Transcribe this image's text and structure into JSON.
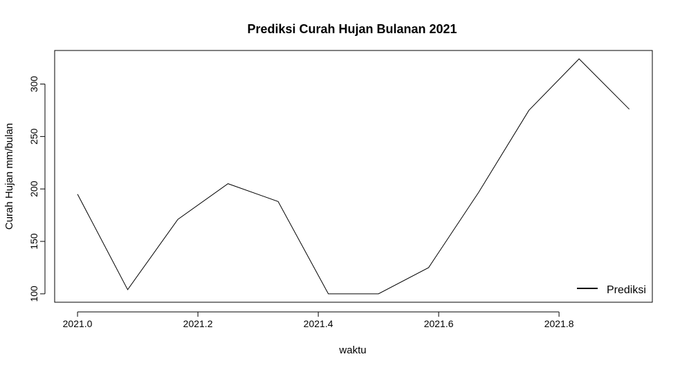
{
  "chart_data": {
    "type": "line",
    "title": "Prediksi Curah Hujan Bulanan 2021",
    "xlabel": "waktu",
    "ylabel": "Curah Hujan mm/bulan",
    "x_ticks": [
      "2021.0",
      "2021.2",
      "2021.4",
      "2021.6",
      "2021.8"
    ],
    "y_ticks": [
      "100",
      "150",
      "200",
      "250",
      "300"
    ],
    "xlim": [
      2020.962,
      2021.955
    ],
    "ylim": [
      92,
      332
    ],
    "grid": false,
    "legend_position": "bottom-right",
    "series": [
      {
        "name": "Prediksi",
        "color": "#000000",
        "x": [
          2021.0,
          2021.0833,
          2021.1667,
          2021.25,
          2021.3333,
          2021.4167,
          2021.5,
          2021.5833,
          2021.6667,
          2021.75,
          2021.8333,
          2021.9167
        ],
        "y": [
          195,
          104,
          171,
          205,
          188,
          100,
          100,
          125,
          197,
          275,
          324,
          276
        ]
      }
    ]
  }
}
